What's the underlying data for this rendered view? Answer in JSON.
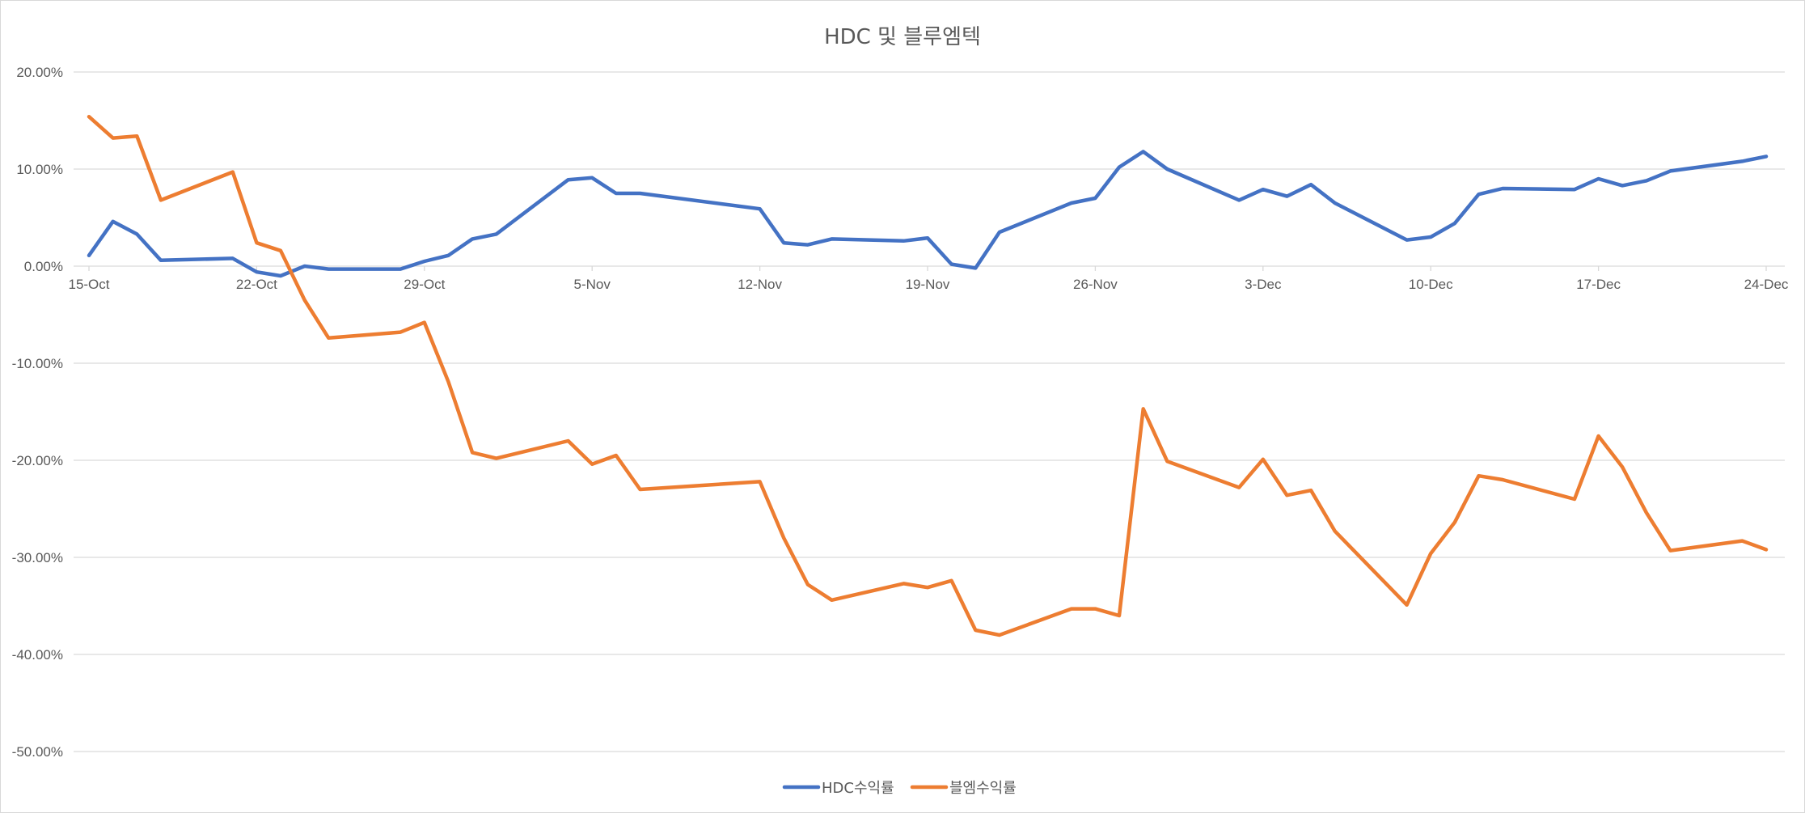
{
  "chart_data": {
    "type": "line",
    "title": "HDC 및 블루엠텍",
    "xlabel": "",
    "ylabel": "",
    "x": [
      "2023-10-15",
      "2023-10-16",
      "2023-10-17",
      "2023-10-18",
      "2023-10-21",
      "2023-10-22",
      "2023-10-23",
      "2023-10-24",
      "2023-10-25",
      "2023-10-28",
      "2023-10-29",
      "2023-10-30",
      "2023-10-31",
      "2023-11-01",
      "2023-11-04",
      "2023-11-05",
      "2023-11-06",
      "2023-11-07",
      "2023-11-12",
      "2023-11-13",
      "2023-11-14",
      "2023-11-15",
      "2023-11-18",
      "2023-11-19",
      "2023-11-20",
      "2023-11-21",
      "2023-11-22",
      "2023-11-25",
      "2023-11-26",
      "2023-11-27",
      "2023-11-28",
      "2023-11-29",
      "2023-12-02",
      "2023-12-03",
      "2023-12-04",
      "2023-12-05",
      "2023-12-06",
      "2023-12-09",
      "2023-12-10",
      "2023-12-11",
      "2023-12-12",
      "2023-12-13",
      "2023-12-16",
      "2023-12-17",
      "2023-12-18",
      "2023-12-19",
      "2023-12-20",
      "2023-12-23",
      "2023-12-24"
    ],
    "x_ticks": [
      "15-Oct",
      "22-Oct",
      "29-Oct",
      "5-Nov",
      "12-Nov",
      "19-Nov",
      "26-Nov",
      "3-Dec",
      "10-Dec",
      "17-Dec",
      "24-Dec"
    ],
    "y_ticks": [
      "20.00%",
      "10.00%",
      "0.00%",
      "-10.00%",
      "-20.00%",
      "-30.00%",
      "-40.00%",
      "-50.00%"
    ],
    "ylim": [
      -50,
      20
    ],
    "y_unit": "%",
    "grid": true,
    "legend_position": "bottom",
    "series": [
      {
        "name": "HDC수익률",
        "color": "#4472C4",
        "values": [
          1.1,
          4.6,
          3.3,
          0.6,
          0.8,
          -0.6,
          -1.0,
          0.0,
          -0.3,
          -0.3,
          0.5,
          1.1,
          2.8,
          3.3,
          8.9,
          9.1,
          7.5,
          7.5,
          5.9,
          2.4,
          2.2,
          2.8,
          2.6,
          2.9,
          0.2,
          -0.2,
          3.5,
          6.5,
          7.0,
          10.2,
          11.8,
          10.0,
          6.8,
          7.9,
          7.2,
          8.4,
          6.5,
          2.7,
          3.0,
          4.4,
          7.4,
          8.0,
          7.9,
          9.0,
          8.3,
          8.8,
          9.8,
          10.8,
          11.3
        ]
      },
      {
        "name": "블엠수익률",
        "color": "#ED7D31",
        "values": [
          15.4,
          13.2,
          13.4,
          6.8,
          9.7,
          2.4,
          1.6,
          -3.5,
          -7.4,
          -6.8,
          -5.8,
          -11.9,
          -19.2,
          -19.8,
          -18.0,
          -20.4,
          -19.5,
          -23.0,
          -22.2,
          -28.0,
          -32.8,
          -34.4,
          -32.7,
          -33.1,
          -32.4,
          -37.5,
          -38.0,
          -35.3,
          -35.3,
          -36.0,
          -14.7,
          -20.1,
          -22.8,
          -19.9,
          -23.6,
          -23.1,
          -27.3,
          -34.9,
          -29.6,
          -26.4,
          -21.6,
          -22.0,
          -24.0,
          -17.5,
          -20.7,
          -25.4,
          -29.3,
          -28.3,
          -29.2
        ]
      }
    ]
  }
}
